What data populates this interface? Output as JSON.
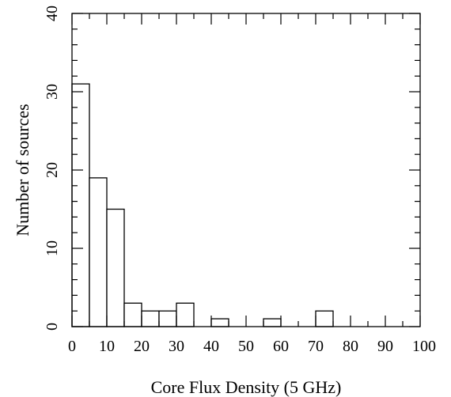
{
  "chart_data": {
    "type": "bar",
    "bin_width": 5,
    "bin_starts": [
      0,
      5,
      10,
      15,
      20,
      25,
      30,
      35,
      40,
      45,
      50,
      55,
      60,
      65,
      70,
      75,
      80,
      85,
      90,
      95
    ],
    "values": [
      31,
      19,
      15,
      3,
      2,
      2,
      3,
      0,
      1,
      0,
      0,
      1,
      0,
      0,
      2,
      0,
      0,
      0,
      0,
      0
    ],
    "title": "",
    "xlabel": "Core Flux Density (5 GHz)",
    "ylabel": "Number of sources",
    "xlim": [
      0,
      100
    ],
    "ylim": [
      0,
      40
    ],
    "x_ticks": [
      "0",
      "10",
      "20",
      "30",
      "40",
      "50",
      "60",
      "70",
      "80",
      "90",
      "100"
    ],
    "y_ticks": [
      "0",
      "10",
      "20",
      "30",
      "40"
    ],
    "grid": false
  }
}
